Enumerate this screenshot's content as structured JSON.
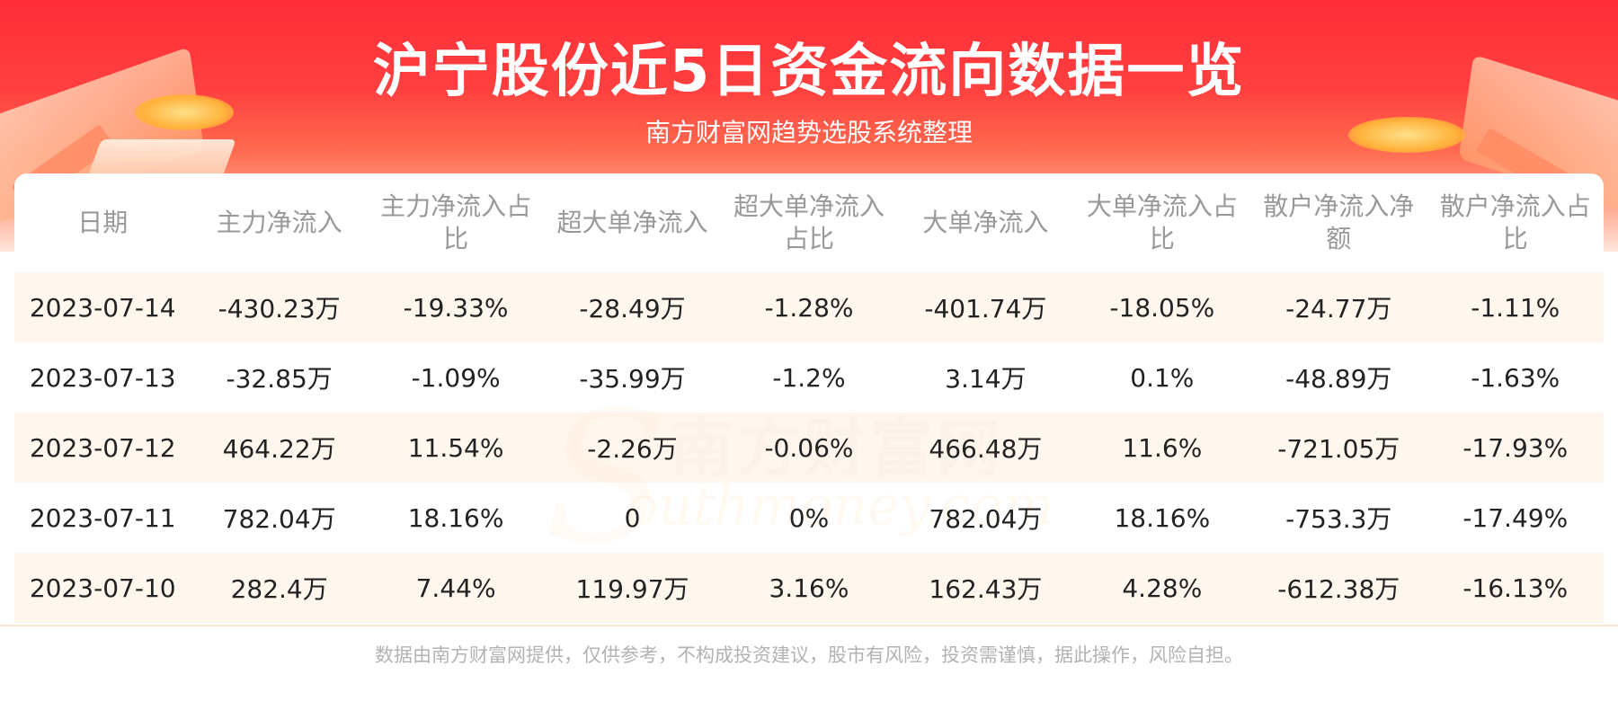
{
  "header": {
    "title": "沪宁股份近5日资金流向数据一览",
    "subtitle": "南方财富网趋势选股系统整理"
  },
  "watermark": {
    "cn": "南方财富网",
    "en": "outhmoney.com",
    "s": "S"
  },
  "table": {
    "columns": [
      "日期",
      "主力净流入",
      "主力净流入占比",
      "超大单净流入",
      "超大单净流入占比",
      "大单净流入",
      "大单净流入占比",
      "散户净流入净额",
      "散户净流入占比"
    ],
    "rows": [
      [
        "2023-07-14",
        "-430.23万",
        "-19.33%",
        "-28.49万",
        "-1.28%",
        "-401.74万",
        "-18.05%",
        "-24.77万",
        "-1.11%"
      ],
      [
        "2023-07-13",
        "-32.85万",
        "-1.09%",
        "-35.99万",
        "-1.2%",
        "3.14万",
        "0.1%",
        "-48.89万",
        "-1.63%"
      ],
      [
        "2023-07-12",
        "464.22万",
        "11.54%",
        "-2.26万",
        "-0.06%",
        "466.48万",
        "11.6%",
        "-721.05万",
        "-17.93%"
      ],
      [
        "2023-07-11",
        "782.04万",
        "18.16%",
        "0",
        "0%",
        "782.04万",
        "18.16%",
        "-753.3万",
        "-17.49%"
      ],
      [
        "2023-07-10",
        "282.4万",
        "7.44%",
        "119.97万",
        "3.16%",
        "162.43万",
        "4.28%",
        "-612.38万",
        "-16.13%"
      ]
    ]
  },
  "footer": {
    "disclaimer": "数据由南方财富网提供，仅供参考，不构成投资建议，股市有风险，投资需谨慎，据此操作，风险自担。"
  }
}
